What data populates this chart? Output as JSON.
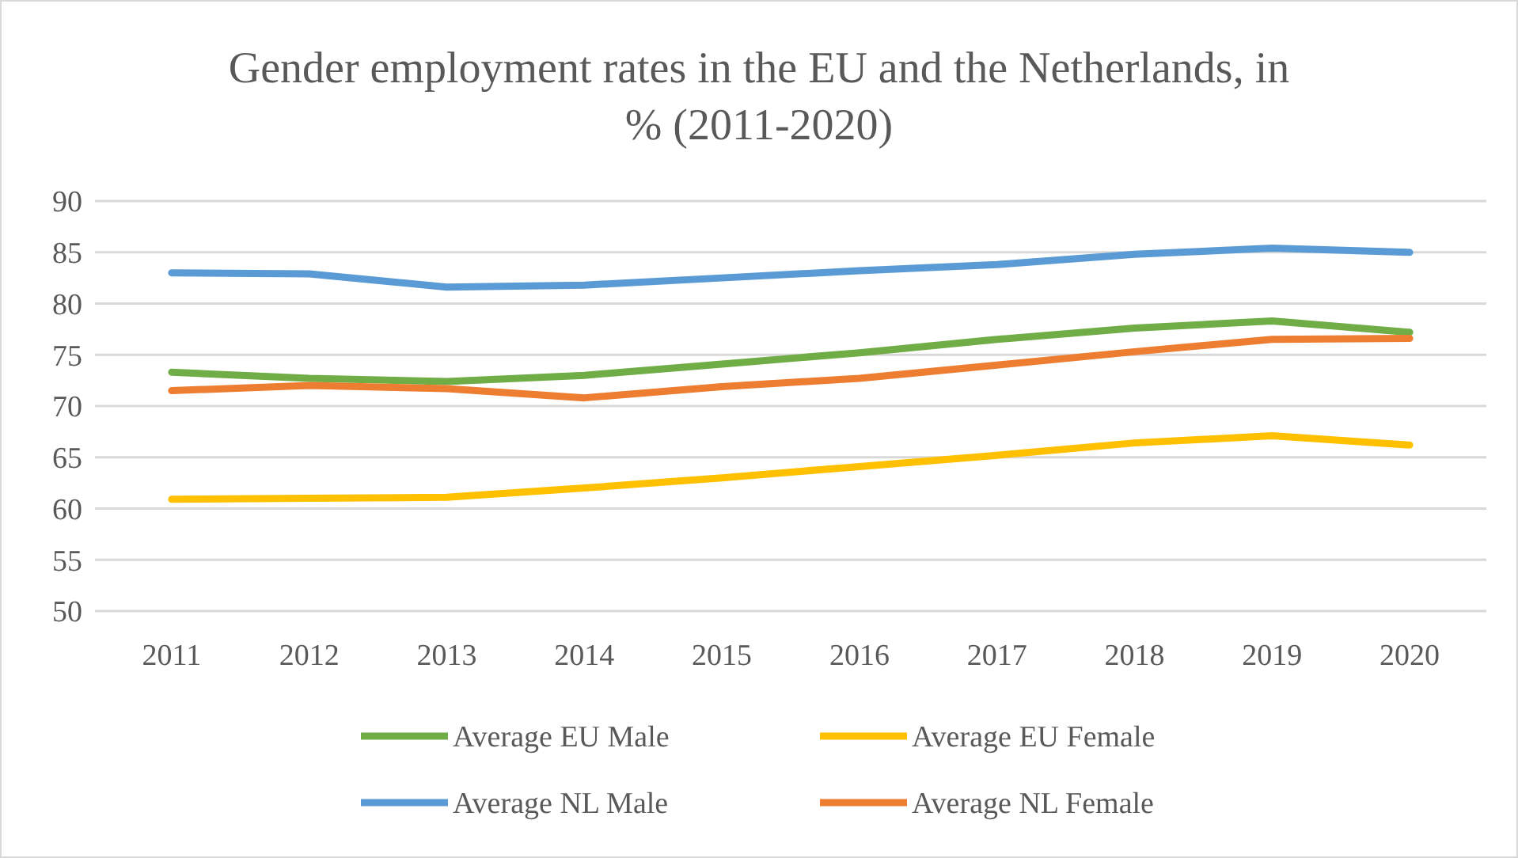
{
  "chart_data": {
    "type": "line",
    "title": "Gender employment rates in the EU and the Netherlands, in % (2011-2020)",
    "categories": [
      "2011",
      "2012",
      "2013",
      "2014",
      "2015",
      "2016",
      "2017",
      "2018",
      "2019",
      "2020"
    ],
    "series": [
      {
        "name": "Average EU Male",
        "color": "#70ad47",
        "values": [
          73.3,
          72.7,
          72.4,
          73.0,
          74.1,
          75.2,
          76.5,
          77.6,
          78.3,
          77.2
        ]
      },
      {
        "name": "Average EU Female",
        "color": "#ffc000",
        "values": [
          60.9,
          61.0,
          61.1,
          62.0,
          63.0,
          64.1,
          65.2,
          66.4,
          67.1,
          66.2
        ]
      },
      {
        "name": "Average NL Male",
        "color": "#5b9bd5",
        "values": [
          83.0,
          82.9,
          81.6,
          81.8,
          82.5,
          83.2,
          83.8,
          84.8,
          85.4,
          85.0
        ]
      },
      {
        "name": "Average NL Female",
        "color": "#ed7d31",
        "values": [
          71.5,
          72.0,
          71.7,
          70.8,
          71.9,
          72.7,
          74.0,
          75.3,
          76.5,
          76.6
        ]
      }
    ],
    "ylim": [
      50,
      90
    ],
    "yticks": [
      50,
      55,
      60,
      65,
      70,
      75,
      80,
      85,
      90
    ],
    "grid": "y",
    "legend": "bottom",
    "marker": "none",
    "line_style": "solid"
  }
}
